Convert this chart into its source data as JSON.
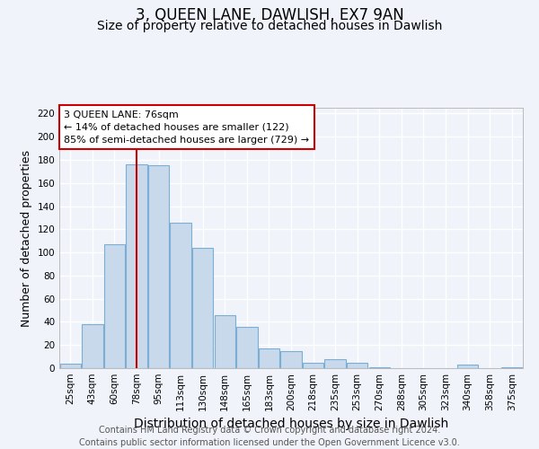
{
  "title": "3, QUEEN LANE, DAWLISH, EX7 9AN",
  "subtitle": "Size of property relative to detached houses in Dawlish",
  "xlabel": "Distribution of detached houses by size in Dawlish",
  "ylabel": "Number of detached properties",
  "bar_labels": [
    "25sqm",
    "43sqm",
    "60sqm",
    "78sqm",
    "95sqm",
    "113sqm",
    "130sqm",
    "148sqm",
    "165sqm",
    "183sqm",
    "200sqm",
    "218sqm",
    "235sqm",
    "253sqm",
    "270sqm",
    "288sqm",
    "305sqm",
    "323sqm",
    "340sqm",
    "358sqm",
    "375sqm"
  ],
  "bar_values": [
    4,
    38,
    107,
    176,
    175,
    126,
    104,
    46,
    36,
    17,
    15,
    5,
    8,
    5,
    1,
    0,
    0,
    0,
    3,
    0,
    1
  ],
  "bar_color": "#c8d9eb",
  "bar_edge_color": "#7aaed4",
  "ylim": [
    0,
    225
  ],
  "yticks": [
    0,
    20,
    40,
    60,
    80,
    100,
    120,
    140,
    160,
    180,
    200,
    220
  ],
  "vline_x": 3,
  "vline_color": "#cc0000",
  "annotation_title": "3 QUEEN LANE: 76sqm",
  "annotation_line1": "← 14% of detached houses are smaller (122)",
  "annotation_line2": "85% of semi-detached houses are larger (729) →",
  "footer1": "Contains HM Land Registry data © Crown copyright and database right 2024.",
  "footer2": "Contains public sector information licensed under the Open Government Licence v3.0.",
  "title_fontsize": 12,
  "subtitle_fontsize": 10,
  "xlabel_fontsize": 10,
  "ylabel_fontsize": 9,
  "tick_fontsize": 7.5,
  "footer_fontsize": 7,
  "background_color": "#f0f4fa"
}
